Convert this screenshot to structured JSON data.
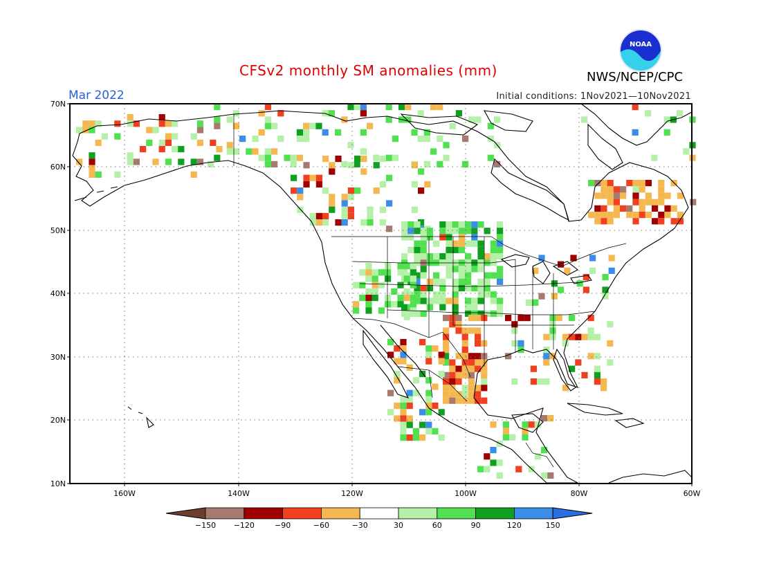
{
  "title": "CFSv2 monthly SM anomalies (mm)",
  "valid_month": "Mar 2022",
  "initial_conditions": "Initial conditions: 1Nov2021—10Nov2021",
  "agency": "NWS/NCEP/CPC",
  "logo_text": "NOAA",
  "map": {
    "lat_labels": [
      "70N",
      "60N",
      "50N",
      "40N",
      "30N",
      "20N",
      "10N"
    ],
    "lon_labels": [
      "160W",
      "140W",
      "120W",
      "100W",
      "80W",
      "60W"
    ]
  },
  "colorbar": {
    "labels": [
      "−150",
      "−120",
      "−90",
      "−60",
      "−30",
      "30",
      "60",
      "90",
      "120",
      "150"
    ],
    "colors": [
      "#6b3e2e",
      "#a67a6e",
      "#a00000",
      "#f04020",
      "#f5b850",
      "#ffffff",
      "#b4f0a8",
      "#50e050",
      "#10a020",
      "#3a8de8",
      "#2a6fe0"
    ]
  },
  "colors": {
    "title": "#e00000",
    "month": "#2a5fd8",
    "dry_extreme": "#6b3e2e",
    "wet_extreme": "#2a6fe0"
  }
}
